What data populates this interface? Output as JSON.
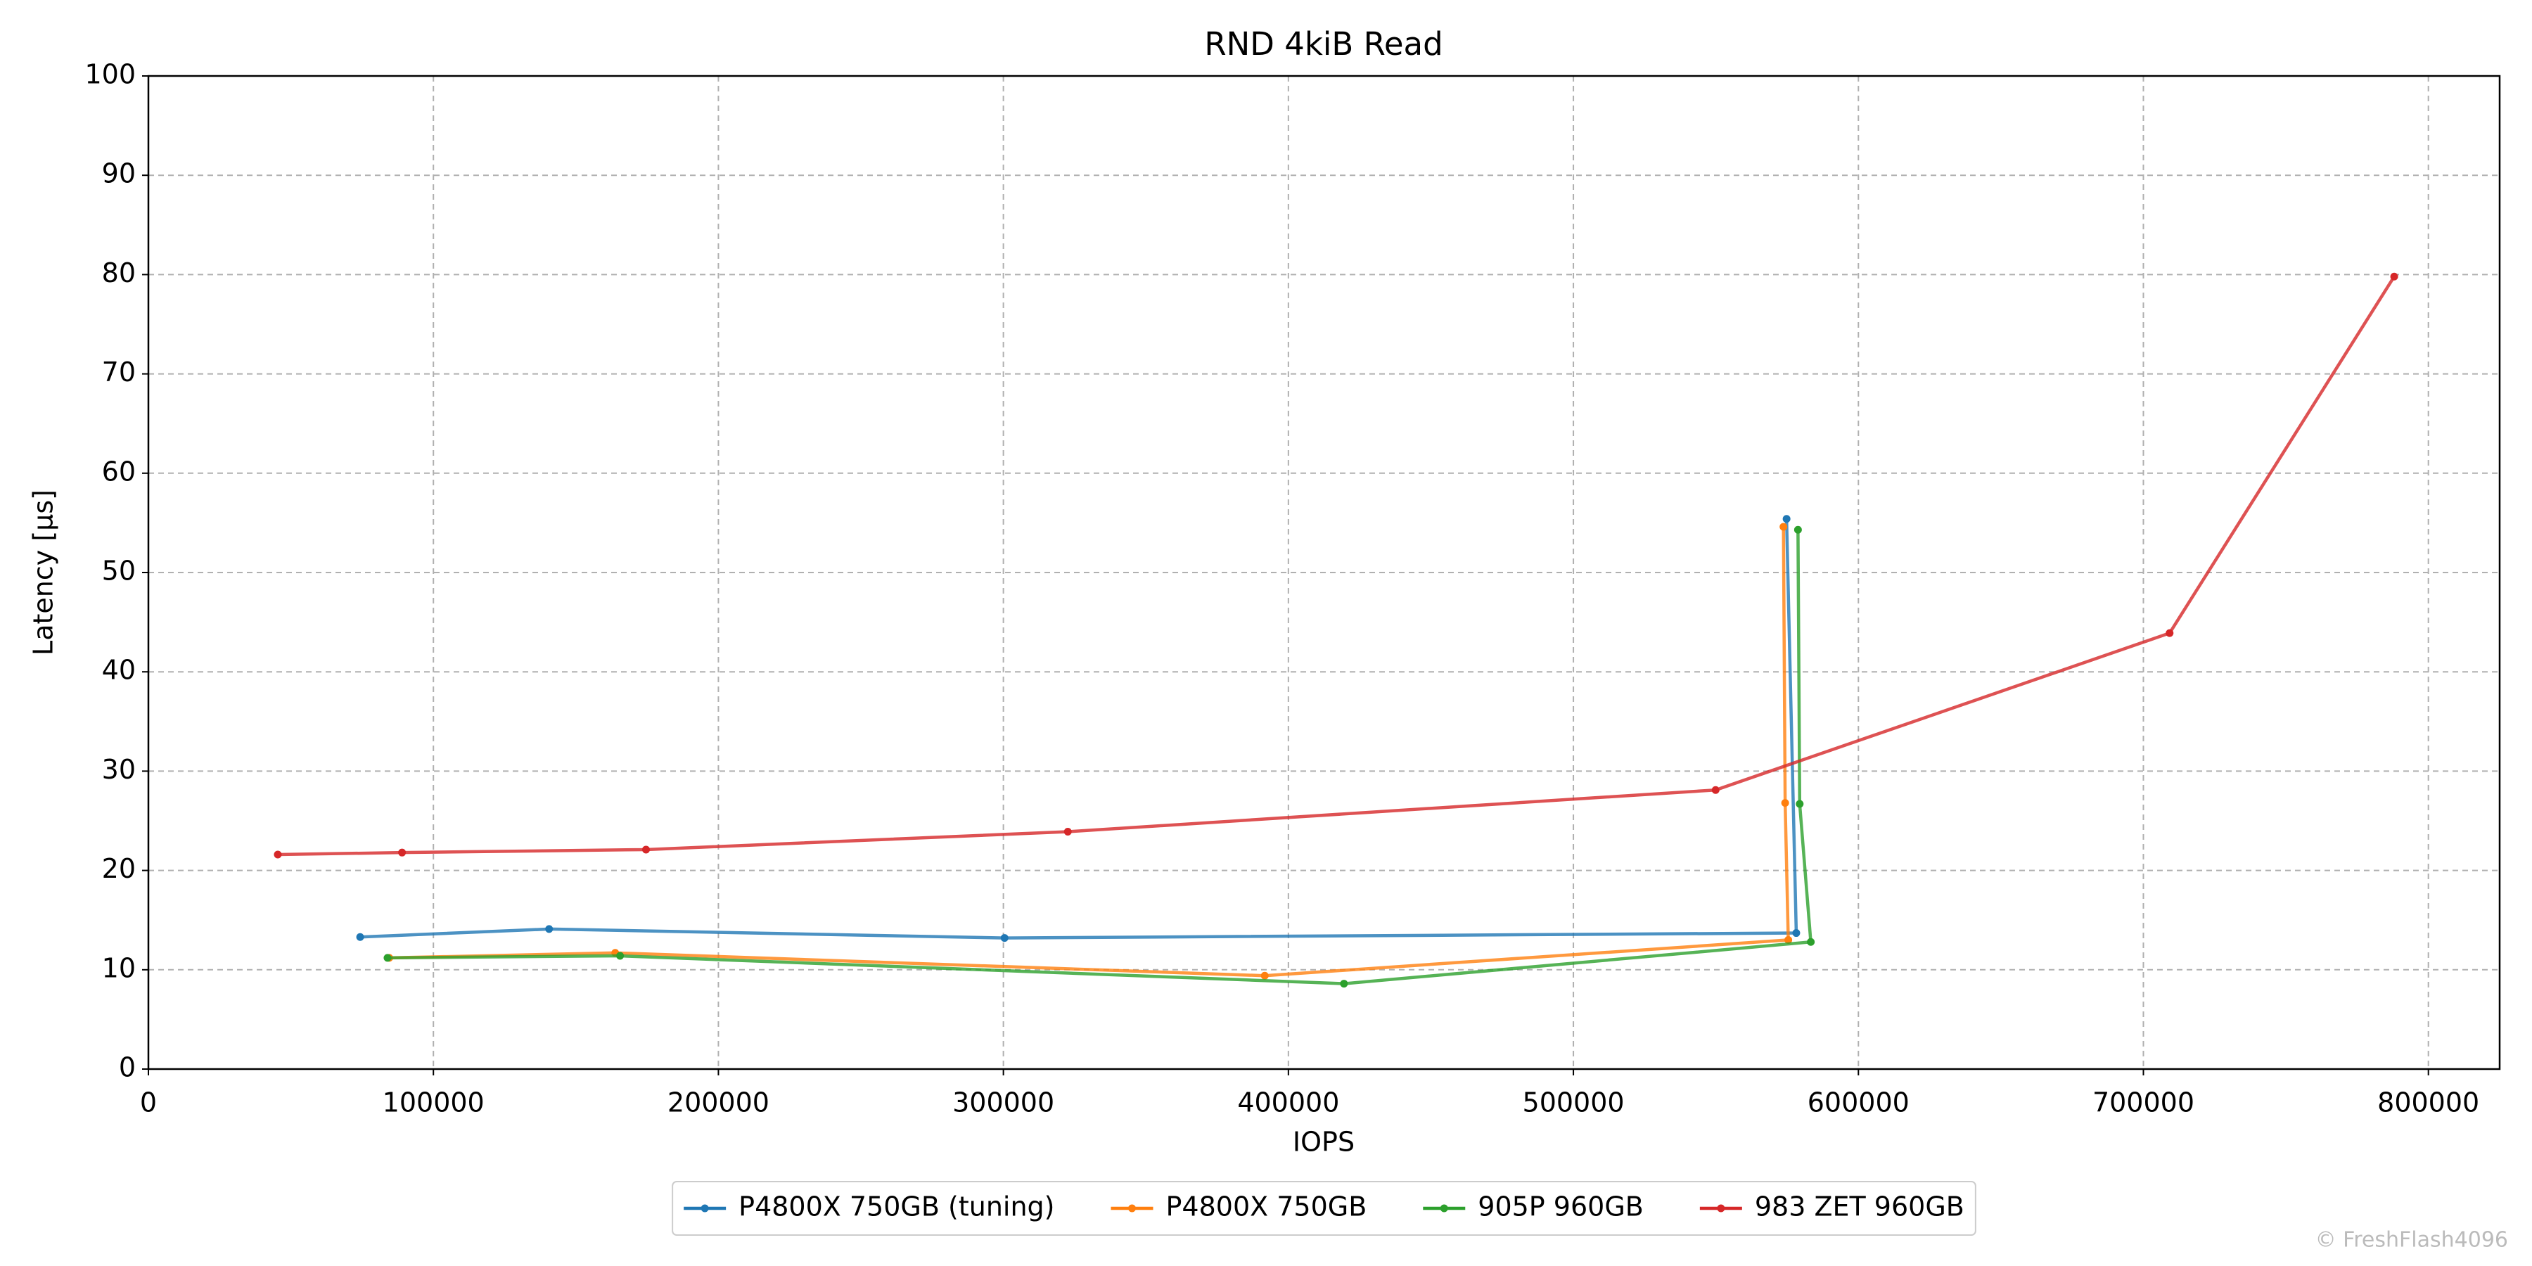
{
  "chart_data": {
    "type": "line",
    "title": "RND 4kiB Read",
    "x_label": "IOPS",
    "y_label": "Latency [µs]",
    "watermark": "© FreshFlash4096",
    "xlim": [
      0,
      825000
    ],
    "ylim": [
      0,
      100
    ],
    "xticks": [
      0,
      100000,
      200000,
      300000,
      400000,
      500000,
      600000,
      700000,
      800000
    ],
    "yticks": [
      0,
      10,
      20,
      30,
      40,
      50,
      60,
      70,
      80,
      90,
      100
    ],
    "grid": true,
    "legend": "bottom",
    "series": [
      {
        "name": "P4800X 750GB (tuning)",
        "color": "#1f77b4",
        "x": [
          74300,
          140600,
          300400,
          578200,
          574800
        ],
        "values": [
          13.3,
          14.1,
          13.2,
          13.7,
          55.4
        ]
      },
      {
        "name": "P4800X 750GB",
        "color": "#ff7f0e",
        "x": [
          84500,
          163800,
          391700,
          575400,
          574300,
          573700
        ],
        "values": [
          11.2,
          11.7,
          9.4,
          13.0,
          26.8,
          54.6
        ]
      },
      {
        "name": "905P 960GB",
        "color": "#2ca02c",
        "x": [
          83900,
          165500,
          419500,
          583300,
          579400,
          578800
        ],
        "values": [
          11.2,
          11.4,
          8.6,
          12.8,
          26.7,
          54.3
        ]
      },
      {
        "name": "983 ZET 960GB",
        "color": "#d62728",
        "x": [
          45400,
          89000,
          174600,
          322600,
          549900,
          709200,
          788000
        ],
        "values": [
          21.6,
          21.8,
          22.1,
          23.9,
          28.1,
          43.9,
          79.8
        ]
      }
    ]
  }
}
